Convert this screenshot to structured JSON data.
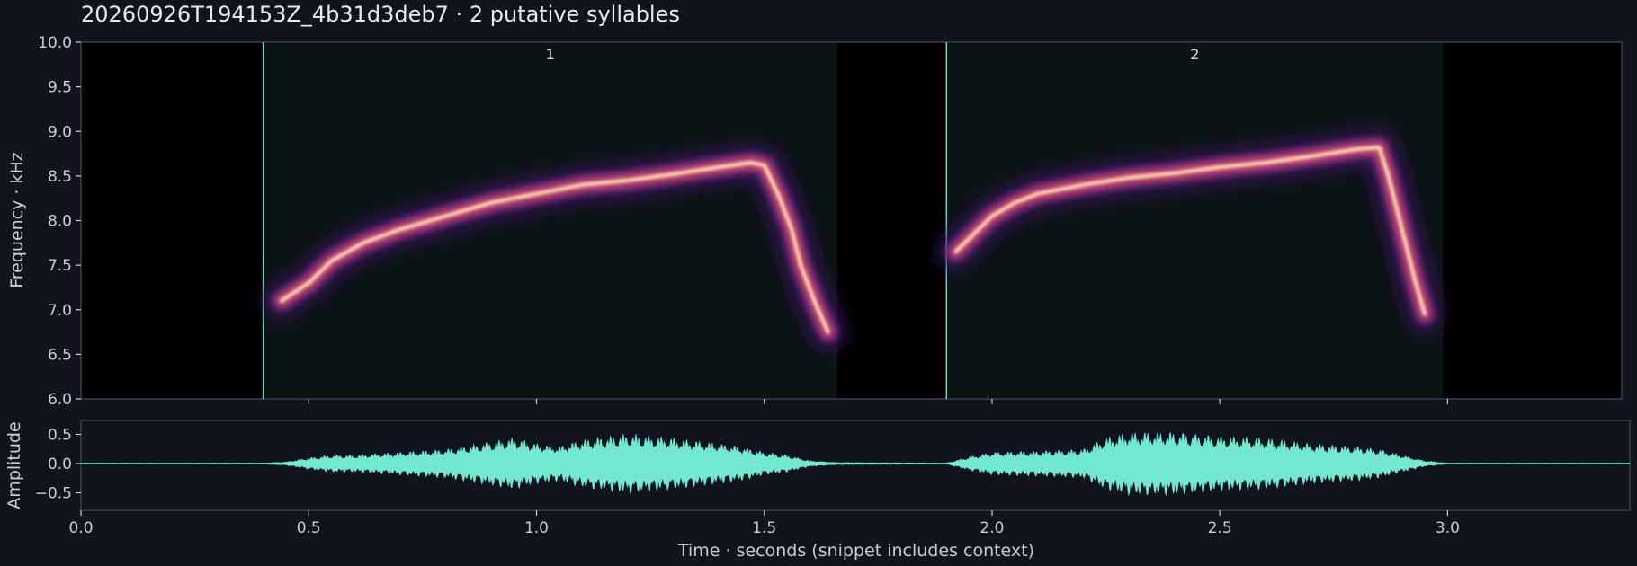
{
  "title": "20260926T194153Z_4b31d3deb7  ·  2 putative syllables",
  "colors": {
    "background": "#11141e",
    "panel_border": "#3a3f4c",
    "syllable_line": "#6fd6c0",
    "waveform": "#72e8d0"
  },
  "chart_data": [
    {
      "type": "heatmap",
      "description_type": "spectrogram",
      "ylabel": "Frequency · kHz",
      "xlim": [
        0.0,
        3.4
      ],
      "ylim": [
        6.0,
        10.0
      ],
      "yticks": [
        "6.0",
        "6.5",
        "7.0",
        "7.5",
        "8.0",
        "8.5",
        "9.0",
        "9.5",
        "10.0"
      ],
      "xticks": [
        0.5,
        1.0,
        1.5,
        2.0,
        2.5,
        3.0
      ],
      "syllables": [
        {
          "label": "1",
          "start": 0.4,
          "end": 1.66,
          "contour": [
            [
              0.44,
              7.1
            ],
            [
              0.5,
              7.3
            ],
            [
              0.55,
              7.55
            ],
            [
              0.62,
              7.75
            ],
            [
              0.7,
              7.9
            ],
            [
              0.8,
              8.05
            ],
            [
              0.9,
              8.2
            ],
            [
              1.0,
              8.3
            ],
            [
              1.1,
              8.4
            ],
            [
              1.2,
              8.45
            ],
            [
              1.3,
              8.52
            ],
            [
              1.4,
              8.6
            ],
            [
              1.47,
              8.65
            ],
            [
              1.5,
              8.62
            ],
            [
              1.53,
              8.3
            ],
            [
              1.56,
              7.9
            ],
            [
              1.58,
              7.5
            ],
            [
              1.61,
              7.1
            ],
            [
              1.64,
              6.75
            ]
          ]
        },
        {
          "label": "2",
          "start": 1.9,
          "end": 2.99,
          "contour": [
            [
              1.92,
              7.65
            ],
            [
              1.96,
              7.85
            ],
            [
              2.0,
              8.05
            ],
            [
              2.05,
              8.2
            ],
            [
              2.1,
              8.3
            ],
            [
              2.2,
              8.4
            ],
            [
              2.3,
              8.48
            ],
            [
              2.4,
              8.53
            ],
            [
              2.5,
              8.6
            ],
            [
              2.6,
              8.65
            ],
            [
              2.7,
              8.72
            ],
            [
              2.8,
              8.8
            ],
            [
              2.85,
              8.82
            ],
            [
              2.87,
              8.5
            ],
            [
              2.89,
              8.1
            ],
            [
              2.91,
              7.7
            ],
            [
              2.93,
              7.3
            ],
            [
              2.95,
              6.95
            ]
          ]
        }
      ]
    },
    {
      "type": "line",
      "description_type": "waveform",
      "ylabel": "Amplitude",
      "xlabel": "Time · seconds (snippet includes context)",
      "xlim": [
        0.0,
        3.4
      ],
      "ylim": [
        -0.8,
        0.8
      ],
      "yticks": [
        "−0.5",
        "0.0",
        "0.5"
      ],
      "xticks": [
        "0.0",
        "0.5",
        "1.0",
        "1.5",
        "2.0",
        "2.5",
        "3.0"
      ],
      "envelope": [
        [
          0.0,
          0.01
        ],
        [
          0.4,
          0.01
        ],
        [
          0.45,
          0.03
        ],
        [
          0.5,
          0.1
        ],
        [
          0.55,
          0.15
        ],
        [
          0.6,
          0.15
        ],
        [
          0.7,
          0.2
        ],
        [
          0.8,
          0.25
        ],
        [
          0.9,
          0.38
        ],
        [
          0.95,
          0.45
        ],
        [
          1.0,
          0.35
        ],
        [
          1.05,
          0.3
        ],
        [
          1.1,
          0.42
        ],
        [
          1.2,
          0.52
        ],
        [
          1.3,
          0.45
        ],
        [
          1.4,
          0.35
        ],
        [
          1.45,
          0.3
        ],
        [
          1.5,
          0.2
        ],
        [
          1.55,
          0.15
        ],
        [
          1.6,
          0.05
        ],
        [
          1.66,
          0.02
        ],
        [
          1.9,
          0.01
        ],
        [
          1.95,
          0.12
        ],
        [
          2.0,
          0.2
        ],
        [
          2.1,
          0.22
        ],
        [
          2.2,
          0.25
        ],
        [
          2.25,
          0.45
        ],
        [
          2.3,
          0.55
        ],
        [
          2.4,
          0.55
        ],
        [
          2.5,
          0.48
        ],
        [
          2.6,
          0.45
        ],
        [
          2.7,
          0.35
        ],
        [
          2.8,
          0.3
        ],
        [
          2.85,
          0.25
        ],
        [
          2.9,
          0.15
        ],
        [
          2.95,
          0.05
        ],
        [
          3.0,
          0.01
        ],
        [
          3.4,
          0.01
        ]
      ]
    }
  ]
}
